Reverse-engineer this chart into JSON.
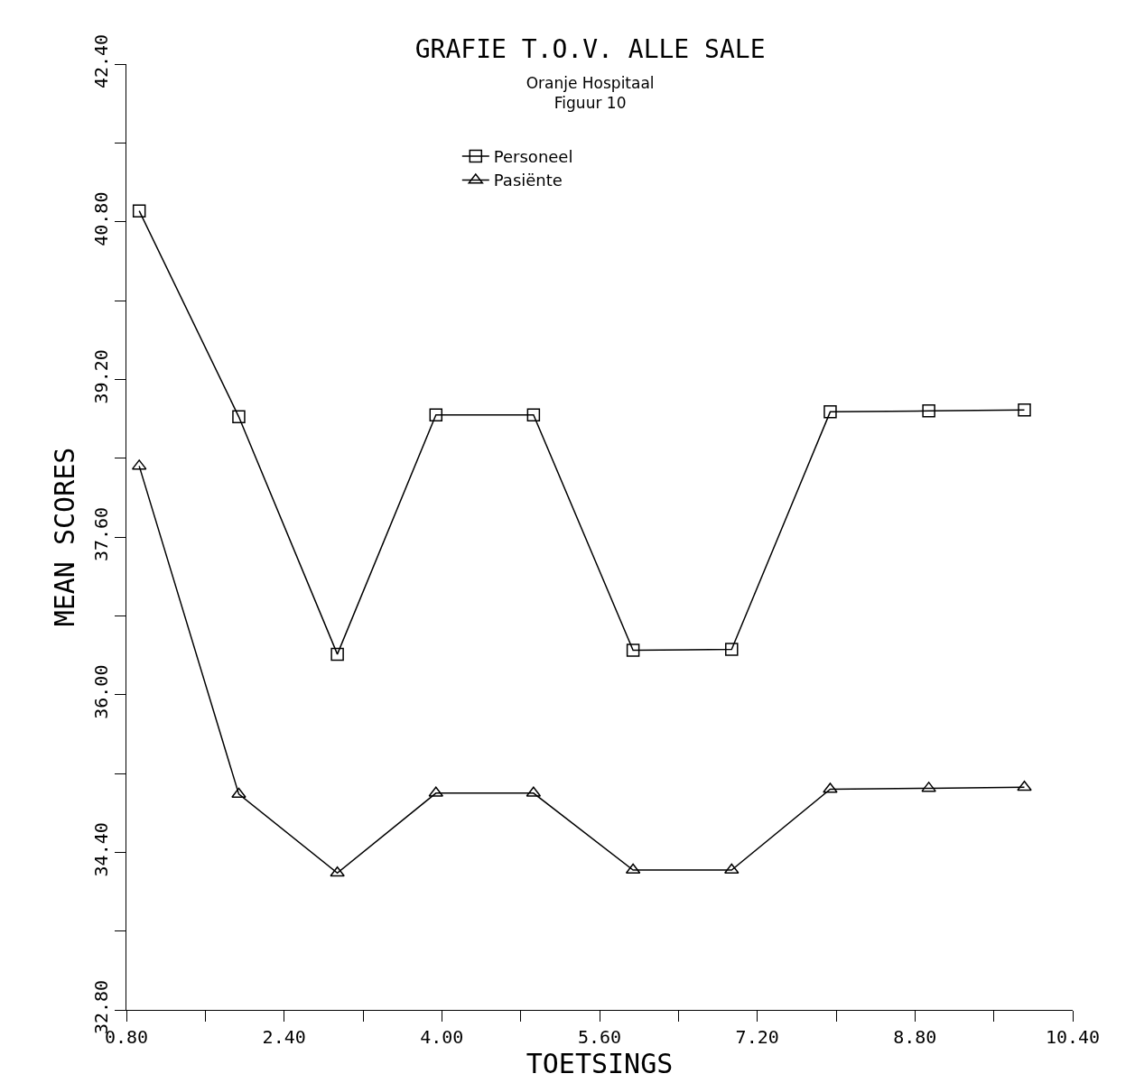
{
  "chart_data": {
    "type": "line",
    "title": "GRAFIE T.O.V. ALLE SALE",
    "subtitle": "Oranje Hospitaal\nFiguur 10",
    "xlabel": "TOETSINGS",
    "ylabel": "MEAN SCORES",
    "x": [
      0.93,
      1.94,
      2.94,
      3.94,
      4.93,
      5.94,
      6.94,
      7.94,
      8.94,
      9.91
    ],
    "series": [
      {
        "name": "Personeel",
        "color": "#000000",
        "marker": "square",
        "values": [
          40.91,
          38.82,
          36.41,
          38.84,
          38.84,
          36.45,
          36.46,
          38.87,
          38.88,
          38.89
        ]
      },
      {
        "name": "Pasiënte",
        "color": "#000000",
        "marker": "triangle",
        "values": [
          38.32,
          34.99,
          34.19,
          35.0,
          35.0,
          34.22,
          34.22,
          35.04,
          35.05,
          35.06
        ]
      }
    ],
    "xlim": [
      0.8,
      10.4
    ],
    "ylim": [
      32.8,
      42.4
    ],
    "xticks": [
      {
        "value": 0.8,
        "label": "0.80"
      },
      {
        "value": 1.6,
        "label": null
      },
      {
        "value": 2.4,
        "label": "2.40"
      },
      {
        "value": 3.2,
        "label": null
      },
      {
        "value": 4.0,
        "label": "4.00"
      },
      {
        "value": 4.8,
        "label": null
      },
      {
        "value": 5.6,
        "label": "5.60"
      },
      {
        "value": 6.4,
        "label": null
      },
      {
        "value": 7.2,
        "label": "7.20"
      },
      {
        "value": 8.0,
        "label": null
      },
      {
        "value": 8.8,
        "label": "8.80"
      },
      {
        "value": 9.6,
        "label": null
      },
      {
        "value": 10.4,
        "label": "10.40"
      }
    ],
    "yticks": [
      {
        "value": 32.8,
        "label": "32.80"
      },
      {
        "value": 33.6,
        "label": null
      },
      {
        "value": 34.4,
        "label": "34.40"
      },
      {
        "value": 35.2,
        "label": null
      },
      {
        "value": 36.0,
        "label": "36.00"
      },
      {
        "value": 36.8,
        "label": null
      },
      {
        "value": 37.6,
        "label": "37.60"
      },
      {
        "value": 38.4,
        "label": null
      },
      {
        "value": 39.2,
        "label": "39.20"
      },
      {
        "value": 40.0,
        "label": null
      },
      {
        "value": 40.8,
        "label": "40.80"
      },
      {
        "value": 41.6,
        "label": null
      },
      {
        "value": 42.4,
        "label": "42.40"
      }
    ],
    "legend": "top",
    "line_style": "solid"
  }
}
